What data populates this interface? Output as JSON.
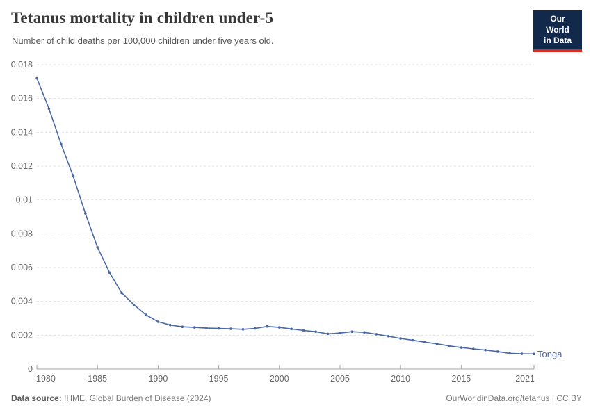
{
  "chart_data": {
    "type": "line",
    "title": "Tetanus mortality in children under-5",
    "subtitle": "Number of child deaths per 100,000 children under five years old.",
    "entity_label": "Tonga",
    "xlim": [
      1980,
      2021
    ],
    "ylim": [
      0,
      0.018
    ],
    "grid": "horizontal-dashed",
    "legend_position": "end-of-line-label",
    "xticks": [
      "1980",
      "1985",
      "1990",
      "1995",
      "2000",
      "2005",
      "2010",
      "2015",
      "2021"
    ],
    "yticks": [
      "0",
      "0.002",
      "0.004",
      "0.006",
      "0.008",
      "0.01",
      "0.012",
      "0.014",
      "0.016",
      "0.018"
    ],
    "series": [
      {
        "name": "Tonga",
        "color": "#4a68a5",
        "x": [
          1980,
          1981,
          1982,
          1983,
          1984,
          1985,
          1986,
          1987,
          1988,
          1989,
          1990,
          1991,
          1992,
          1993,
          1994,
          1995,
          1996,
          1997,
          1998,
          1999,
          2000,
          2001,
          2002,
          2003,
          2004,
          2005,
          2006,
          2007,
          2008,
          2009,
          2010,
          2011,
          2012,
          2013,
          2014,
          2015,
          2016,
          2017,
          2018,
          2019,
          2020,
          2021
        ],
        "values": [
          0.0172,
          0.0154,
          0.0133,
          0.0114,
          0.0092,
          0.0072,
          0.0057,
          0.0045,
          0.0038,
          0.0032,
          0.0028,
          0.0026,
          0.0025,
          0.00246,
          0.00242,
          0.0024,
          0.00238,
          0.00235,
          0.0024,
          0.00252,
          0.00246,
          0.00237,
          0.00228,
          0.00221,
          0.00208,
          0.00213,
          0.00221,
          0.00217,
          0.00206,
          0.00194,
          0.00181,
          0.0017,
          0.00159,
          0.00149,
          0.00137,
          0.00127,
          0.00119,
          0.00112,
          0.00103,
          0.00093,
          0.0009,
          0.00089
        ]
      }
    ]
  },
  "header": {
    "logo": {
      "line1": "Our World",
      "line2": "in Data"
    }
  },
  "footer": {
    "source_label": "Data source:",
    "source_text": " IHME, Global Burden of Disease (2024)",
    "credit": "OurWorldinData.org/tetanus | CC BY"
  },
  "colors": {
    "line": "#4a68a5",
    "gridline": "#e0e0e0",
    "axis": "#a6a6a6",
    "tick_text": "#666666",
    "title_text": "#383838",
    "subtitle_text": "#555555",
    "logo_bg": "#12294b",
    "logo_bar": "#dc2a20"
  }
}
